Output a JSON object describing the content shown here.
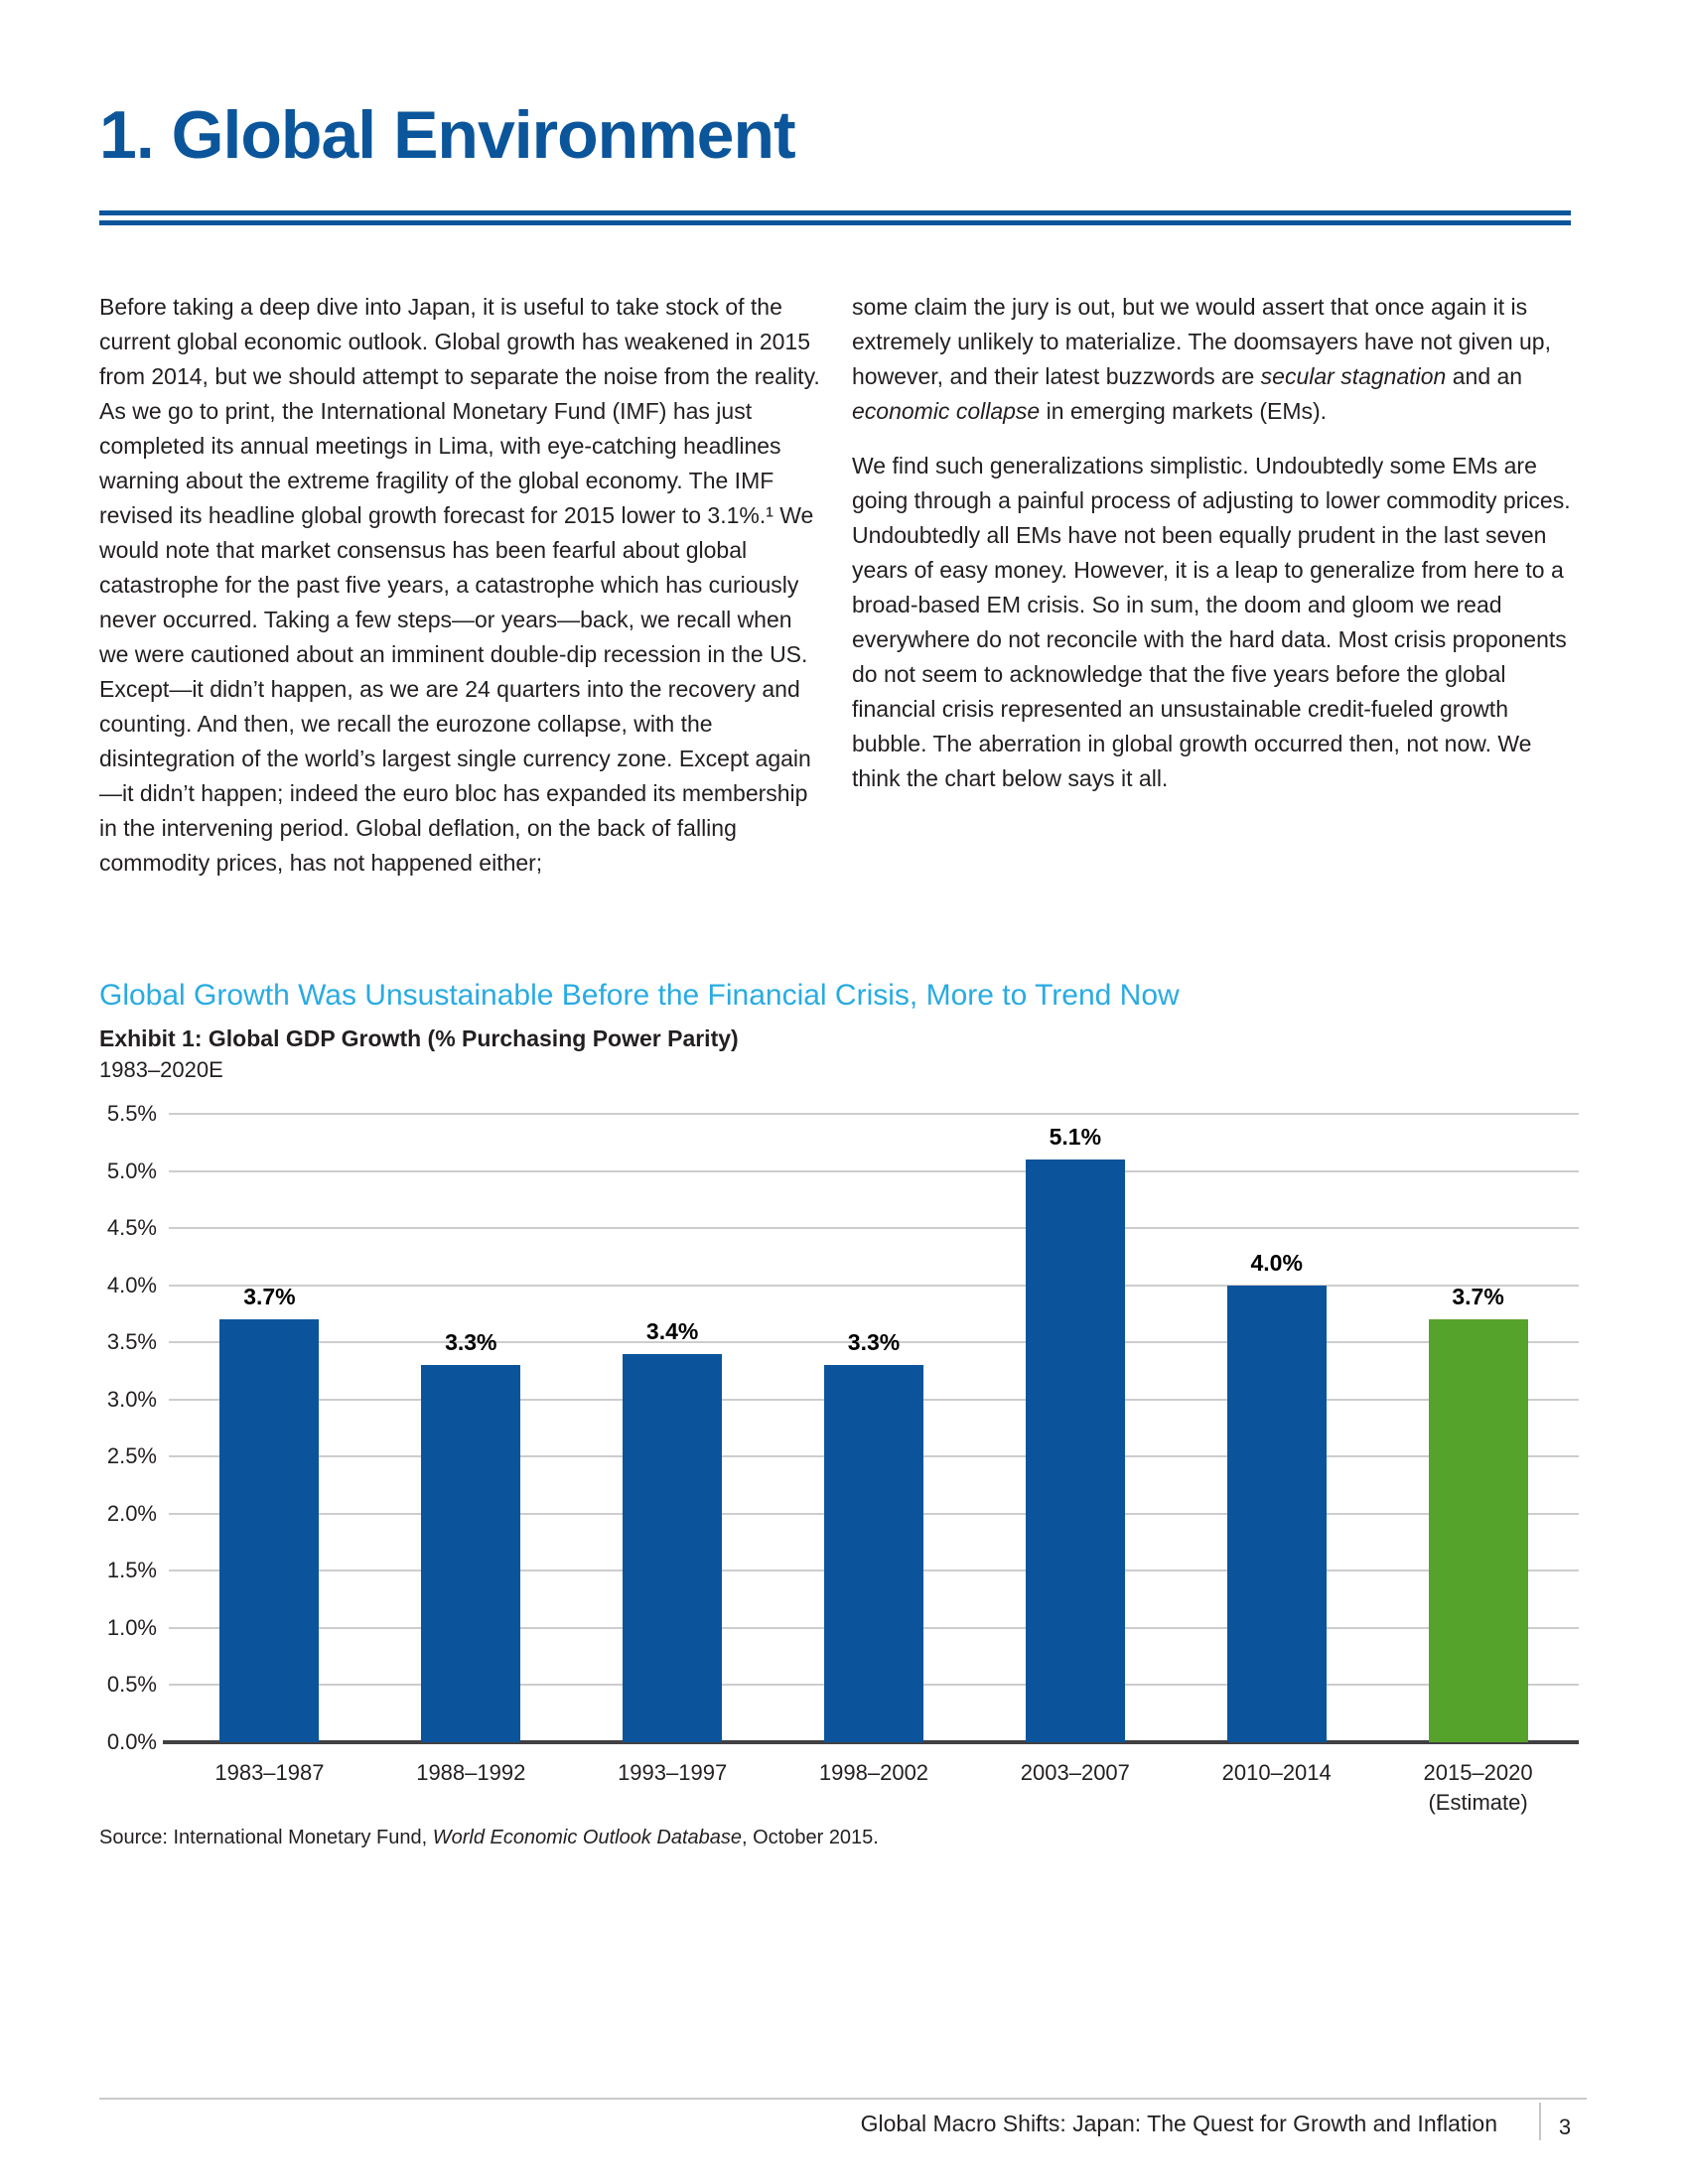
{
  "page": {
    "title": "1. Global Environment",
    "footer": {
      "text": "Global Macro Shifts: Japan: The Quest for Growth and Inflation",
      "page_number": "3"
    }
  },
  "body": {
    "left_col": {
      "p1": "Before taking a deep dive into Japan, it is useful to take stock of the current global economic outlook. Global growth has weakened in 2015 from 2014, but we should attempt to separate the noise from the reality. As we go to print, the International Monetary Fund (IMF) has just completed its annual meetings in Lima, with eye-catching headlines warning about the extreme fragility of the global economy. The IMF revised its headline global growth forecast for 2015 lower to 3.1%.¹ We would note that market consensus has been fearful about global catastrophe for the past five years, a catastrophe which has curiously never occurred. Taking a few steps—or years—back, we recall when we were cautioned about an imminent double-dip recession in the US. Except—it didn’t happen, as we are 24 quarters into the recovery and counting. And then, we recall the eurozone collapse, with the disintegration of the world’s largest single currency zone. Except again—it didn’t happen; indeed the euro bloc has expanded its membership in the intervening period. Global deflation, on the back of falling commodity prices, has not happened either;"
    },
    "right_col": {
      "p1": [
        {
          "t": "some claim the jury is out, but we would assert that once again it is extremely unlikely to materialize. The doomsayers have not given up, however, and their latest buzzwords are "
        },
        {
          "t": "secular stagnation",
          "i": true
        },
        {
          "t": " and an "
        },
        {
          "t": "economic collapse",
          "i": true
        },
        {
          "t": " in emerging markets (EMs)."
        }
      ],
      "p2": "We find such generalizations simplistic. Undoubtedly some EMs are going through a painful process of adjusting to lower commodity prices. Undoubtedly all EMs have not been equally prudent in the last seven years of easy money. However, it is a leap to generalize from here to a broad-based EM crisis. So in sum, the doom and gloom we read everywhere do not reconcile with the hard data. Most crisis proponents do not seem to acknowledge that the five years before the global financial crisis represented an unsustainable credit-fueled growth bubble. The aberration in global growth occurred then, not now. We think the chart below says it all."
    }
  },
  "chart_data": {
    "type": "bar",
    "title": "Global Growth Was Unsustainable Before the Financial Crisis, More to Trend Now",
    "exhibit_label": "Exhibit 1: Global GDP Growth (% Purchasing Power Parity)",
    "period_label": "1983–2020E",
    "categories": [
      [
        "1983–1987"
      ],
      [
        "1988–1992"
      ],
      [
        "1993–1997"
      ],
      [
        "1998–2002"
      ],
      [
        "2003–2007"
      ],
      [
        "2010–2014"
      ],
      [
        "2015–2020",
        "(Estimate)"
      ]
    ],
    "values": [
      3.7,
      3.3,
      3.4,
      3.3,
      5.1,
      4.0,
      3.7
    ],
    "value_labels": [
      "3.7%",
      "3.3%",
      "3.4%",
      "3.3%",
      "5.1%",
      "4.0%",
      "3.7%"
    ],
    "bar_colors": [
      "#0b549b",
      "#0b549b",
      "#0b549b",
      "#0b549b",
      "#0b549b",
      "#0b549b",
      "#56a32b"
    ],
    "ylim": [
      0,
      5.5
    ],
    "ytick_step": 0.5,
    "grid": true,
    "legend": "none",
    "source": [
      {
        "t": "Source: International Monetary Fund, "
      },
      {
        "t": "World Economic Outlook Database",
        "i": true
      },
      {
        "t": ", October 2015."
      }
    ]
  },
  "colors": {
    "title_blue": "#0b559b",
    "heading_cyan": "#29abe2",
    "bar_blue": "#0b549b",
    "bar_green": "#56a32b",
    "body_text": "#231f20",
    "gridline_gray": "#cdcdce",
    "axis_dark": "#414042"
  }
}
